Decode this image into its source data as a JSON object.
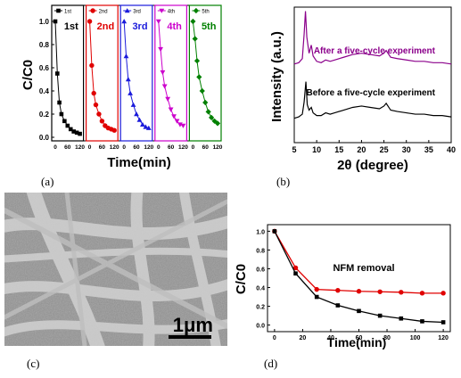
{
  "captions": {
    "a": "(a)",
    "b": "(b)",
    "c": "(c)",
    "d": "(d)"
  },
  "sem": {
    "scale_label": "1μm"
  },
  "chart_data": [
    {
      "type": "line",
      "panel": "a",
      "xlabel": "Time(min)",
      "ylabel": "C/C0",
      "ylim": [
        0,
        1.1
      ],
      "yticks": [
        "0.0",
        "0.2",
        "0.4",
        "0.6",
        "0.8",
        "1.0"
      ],
      "xticks": [
        "0",
        "60",
        "120"
      ],
      "x": [
        0,
        10,
        20,
        30,
        45,
        60,
        75,
        90,
        105,
        120
      ],
      "series": [
        {
          "name": "1st",
          "label": "1st",
          "color": "#000000",
          "marker": "square",
          "values": [
            1.0,
            0.55,
            0.3,
            0.2,
            0.14,
            0.1,
            0.07,
            0.05,
            0.04,
            0.03
          ]
        },
        {
          "name": "2nd",
          "label": "2nd",
          "color": "#e00000",
          "marker": "circle",
          "values": [
            1.0,
            0.62,
            0.38,
            0.28,
            0.2,
            0.14,
            0.1,
            0.08,
            0.07,
            0.06
          ]
        },
        {
          "name": "3rd",
          "label": "3rd",
          "color": "#1a1adb",
          "marker": "triangle",
          "values": [
            1.0,
            0.7,
            0.5,
            0.38,
            0.28,
            0.2,
            0.15,
            0.11,
            0.09,
            0.08
          ]
        },
        {
          "name": "4th",
          "label": "4th",
          "color": "#cc00cc",
          "marker": "triangle-down",
          "values": [
            1.0,
            0.76,
            0.56,
            0.44,
            0.33,
            0.24,
            0.18,
            0.14,
            0.11,
            0.1
          ]
        },
        {
          "name": "5th",
          "label": "5th",
          "color": "#008000",
          "marker": "diamond",
          "values": [
            1.0,
            0.85,
            0.66,
            0.52,
            0.4,
            0.3,
            0.22,
            0.17,
            0.14,
            0.12
          ]
        }
      ]
    },
    {
      "type": "line",
      "panel": "b",
      "xlabel": "2θ (degree)",
      "ylabel": "Intensity (a.u.)",
      "xlim": [
        5,
        40
      ],
      "xticks": [
        "5",
        "10",
        "15",
        "20",
        "25",
        "30",
        "35",
        "40"
      ],
      "series": [
        {
          "name": "After a five-cycle experiment",
          "color": "#8b008b",
          "x": [
            5,
            6,
            6.8,
            7.2,
            7.5,
            7.8,
            8.3,
            8.8,
            9.2,
            10,
            11,
            12,
            13,
            14,
            16,
            18,
            20,
            22,
            24,
            25,
            25.5,
            26.5,
            28,
            30,
            32,
            34,
            36,
            38,
            40
          ],
          "values": [
            0.58,
            0.59,
            0.62,
            0.8,
            0.97,
            0.78,
            0.66,
            0.72,
            0.64,
            0.6,
            0.59,
            0.61,
            0.6,
            0.61,
            0.63,
            0.65,
            0.66,
            0.65,
            0.64,
            0.66,
            0.68,
            0.63,
            0.62,
            0.61,
            0.6,
            0.6,
            0.59,
            0.59,
            0.58
          ]
        },
        {
          "name": "Before a five-cycle experiment",
          "color": "#000000",
          "x": [
            5,
            6,
            6.8,
            7.2,
            7.6,
            7.9,
            8.3,
            8.8,
            9.2,
            10,
            11,
            12,
            13,
            14,
            16,
            18,
            20,
            22,
            24,
            25,
            25.5,
            26.5,
            28,
            30,
            32,
            34,
            36,
            38,
            40
          ],
          "values": [
            0.18,
            0.19,
            0.21,
            0.3,
            0.45,
            0.28,
            0.24,
            0.26,
            0.22,
            0.2,
            0.2,
            0.22,
            0.21,
            0.22,
            0.24,
            0.26,
            0.27,
            0.26,
            0.25,
            0.27,
            0.29,
            0.24,
            0.23,
            0.22,
            0.21,
            0.21,
            0.2,
            0.2,
            0.19
          ]
        }
      ]
    },
    {
      "type": "line",
      "panel": "d",
      "xlabel": "Time(min)",
      "ylabel": "C/C0",
      "xlim": [
        -5,
        125
      ],
      "ylim": [
        -0.07,
        1.07
      ],
      "xticks": [
        "0",
        "20",
        "40",
        "60",
        "80",
        "100",
        "120"
      ],
      "yticks": [
        "0.0",
        "0.2",
        "0.4",
        "0.6",
        "0.8",
        "1.0"
      ],
      "annotation": "NFM removal",
      "series": [
        {
          "name": "NFM removal",
          "color": "#e00000",
          "marker": "circle",
          "x": [
            0,
            15,
            30,
            45,
            60,
            75,
            90,
            105,
            120
          ],
          "values": [
            1.0,
            0.61,
            0.38,
            0.37,
            0.36,
            0.355,
            0.35,
            0.34,
            0.34
          ]
        },
        {
          "name": "black",
          "color": "#000000",
          "marker": "square",
          "x": [
            0,
            15,
            30,
            45,
            60,
            75,
            90,
            105,
            120
          ],
          "values": [
            1.0,
            0.55,
            0.3,
            0.21,
            0.15,
            0.1,
            0.07,
            0.04,
            0.03
          ]
        }
      ]
    }
  ]
}
